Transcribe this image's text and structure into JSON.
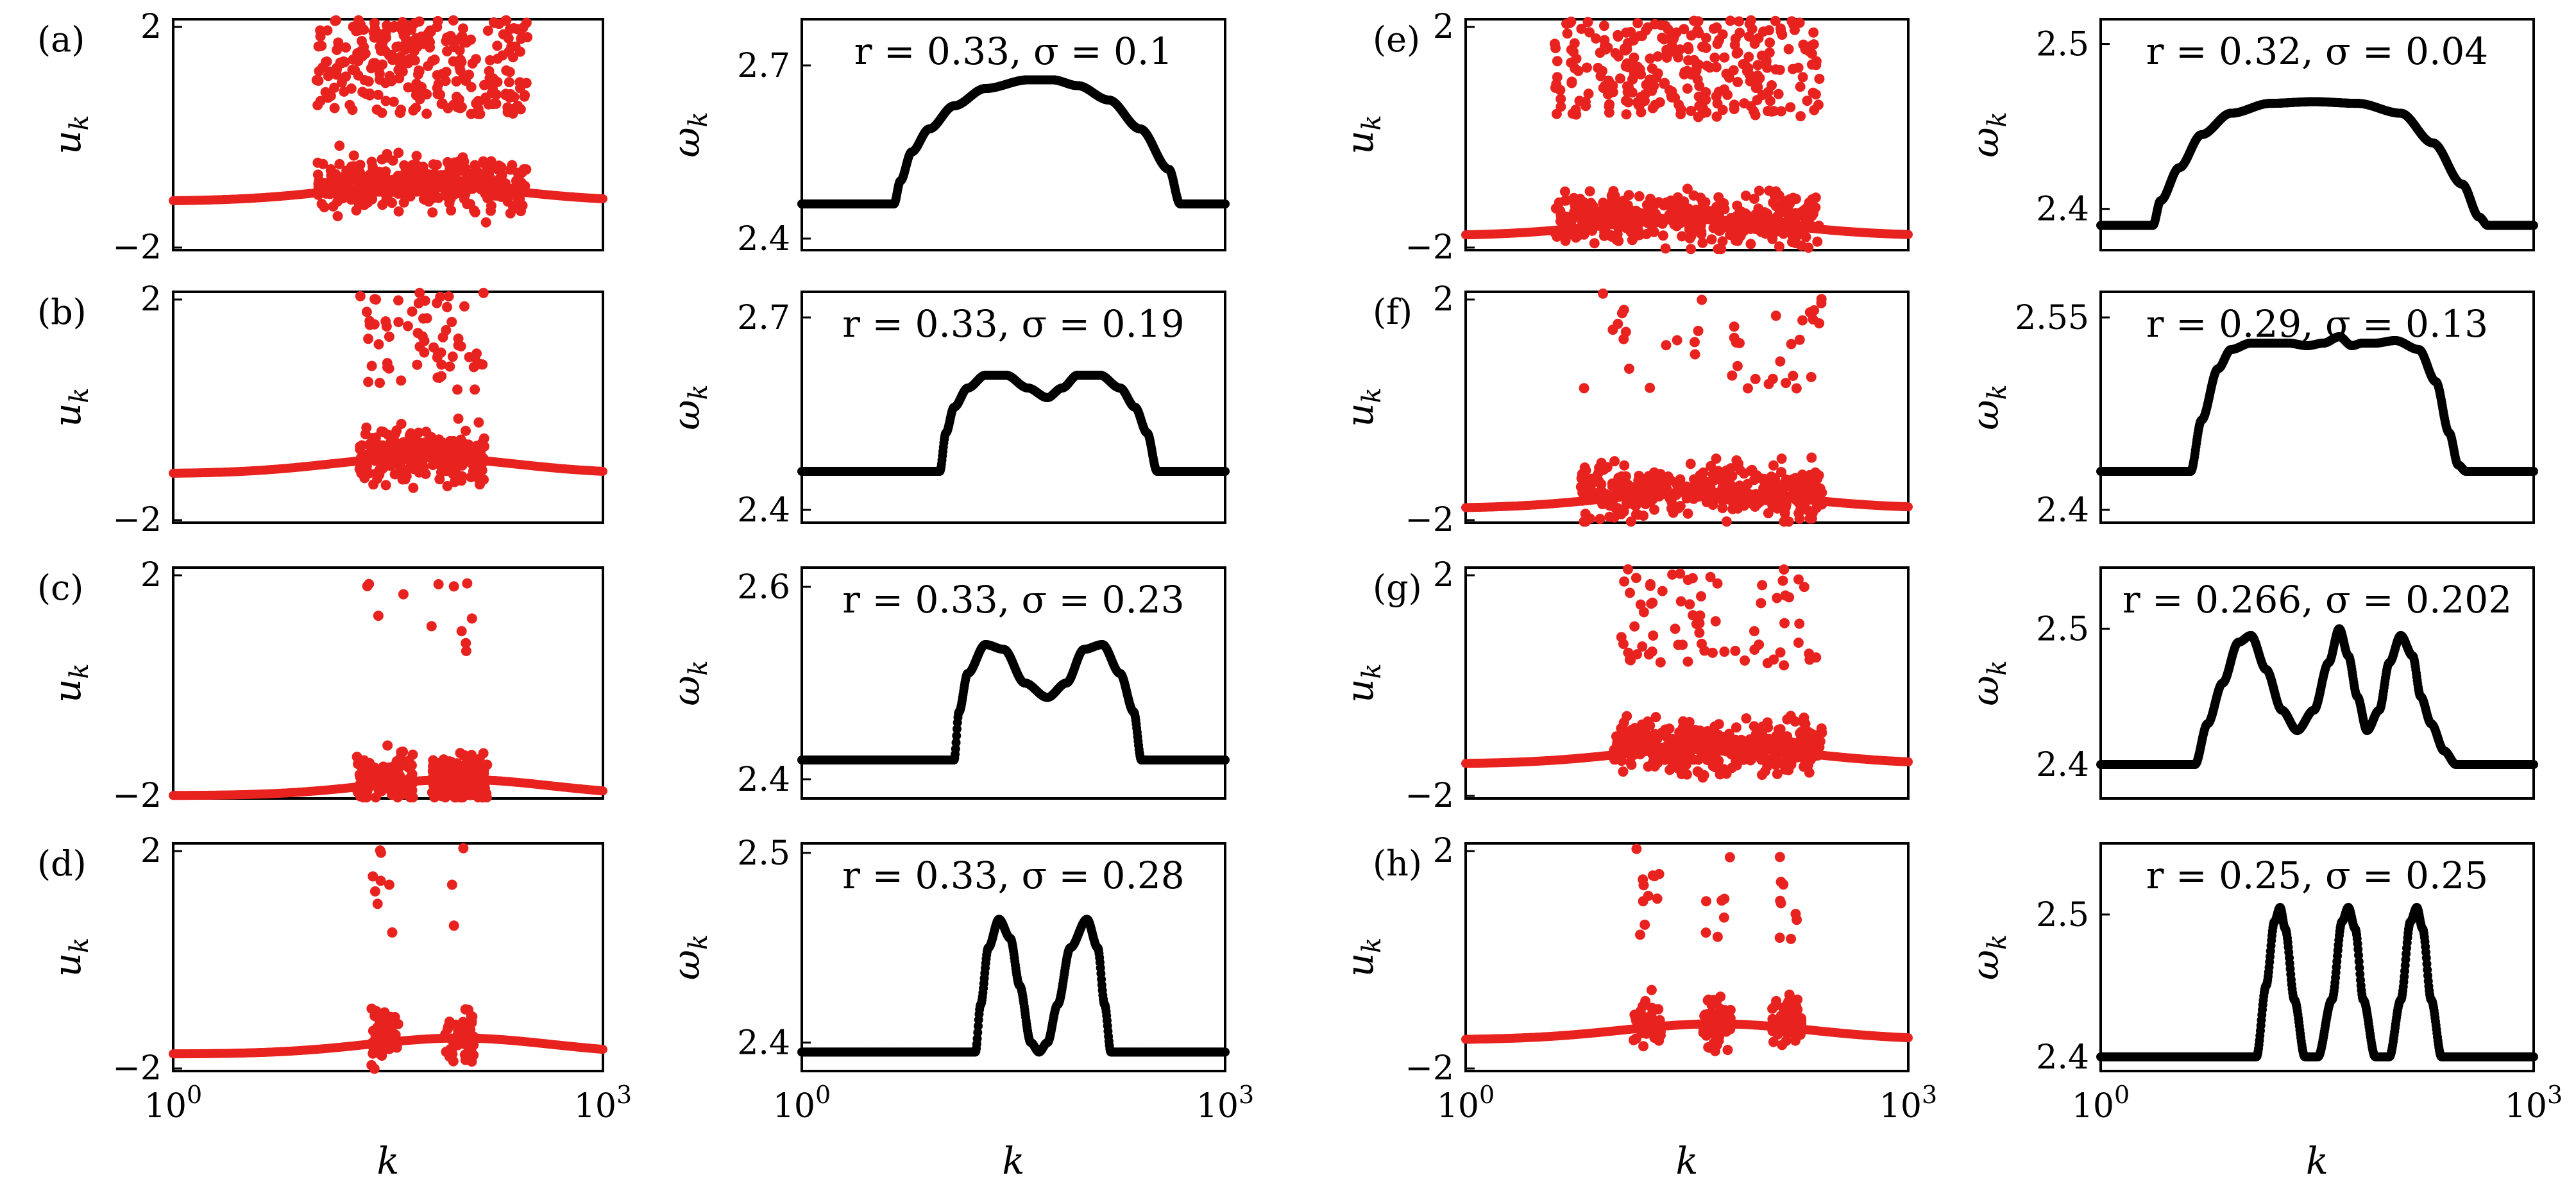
{
  "figure": {
    "panel_letters": [
      "(a)",
      "(b)",
      "(c)",
      "(d)",
      "(e)",
      "(f)",
      "(g)",
      "(h)"
    ],
    "x_axis_label": "k",
    "u_axis_label": "u_k",
    "omega_axis_label": "ω_k",
    "x_tick_labels": [
      "10^0",
      "10^3"
    ],
    "u_tick_labels": [
      "2",
      "−2"
    ]
  },
  "chart_data": [
    {
      "panel": "(a)",
      "type": "scatter",
      "color": "#e8221e",
      "xlabel": "k",
      "ylabel": "u_k",
      "xscale": "log",
      "xlim": [
        1,
        1000
      ],
      "ylim": [
        -2,
        2
      ],
      "yticks": [
        2,
        -2
      ],
      "xticks": [
        "10^0",
        "10^3"
      ],
      "description_values": {
        "baseline": -1.15,
        "scatter_range": [
          10,
          300
        ],
        "cluster_count": 1,
        "cluster_centers": [
          55
        ],
        "cluster_width_dex": 0.78
      }
    },
    {
      "panel": "(b)",
      "type": "scatter",
      "color": "#e8221e",
      "xlabel": "k",
      "ylabel": "u_k",
      "xscale": "log",
      "xlim": [
        1,
        1000
      ],
      "ylim": [
        -2,
        2
      ],
      "yticks": [
        2,
        -2
      ],
      "xticks": [
        "10^0",
        "10^3"
      ],
      "description_values": {
        "baseline": -1.15,
        "scatter_range": [
          20,
          150
        ],
        "cluster_count": 1,
        "cluster_centers": [
          55
        ],
        "cluster_width_dex": 0.45
      }
    },
    {
      "panel": "(c)",
      "type": "scatter",
      "color": "#e8221e",
      "xlabel": "k",
      "ylabel": "u_k",
      "xscale": "log",
      "xlim": [
        1,
        1000
      ],
      "ylim": [
        -2,
        2
      ],
      "yticks": [
        2,
        -2
      ],
      "xticks": [
        "10^0",
        "10^3"
      ],
      "description_values": {
        "baseline": -1.95,
        "scatter_range": [
          20,
          150
        ],
        "cluster_count": 2,
        "cluster_centers": [
          30,
          100
        ],
        "cluster_width_dex": 0.2
      }
    },
    {
      "panel": "(d)",
      "type": "scatter",
      "color": "#e8221e",
      "xlabel": "k",
      "ylabel": "u_k",
      "xscale": "log",
      "xlim": [
        1,
        1000
      ],
      "ylim": [
        -2,
        2
      ],
      "yticks": [
        2,
        -2
      ],
      "xticks": [
        "10^0",
        "10^3"
      ],
      "description_values": {
        "baseline": -1.7,
        "scatter_range": [
          25,
          140
        ],
        "cluster_count": 2,
        "cluster_centers": [
          30,
          100
        ],
        "cluster_width_dex": 0.1
      }
    },
    {
      "panel": "(e)",
      "type": "scatter",
      "color": "#e8221e",
      "xlabel": "k",
      "ylabel": "u_k",
      "xscale": "log",
      "xlim": [
        1,
        1000
      ],
      "ylim": [
        -2,
        2
      ],
      "yticks": [
        2,
        -2
      ],
      "xticks": [
        "10^0",
        "10^3"
      ],
      "description_values": {
        "baseline": -1.75,
        "scatter_range": [
          4,
          250
        ],
        "cluster_count": 1,
        "cluster_centers": [
          35
        ],
        "cluster_width_dex": 0.85
      }
    },
    {
      "panel": "(f)",
      "type": "scatter",
      "color": "#e8221e",
      "xlabel": "k",
      "ylabel": "u_k",
      "xscale": "log",
      "xlim": [
        1,
        1000
      ],
      "ylim": [
        -2,
        2
      ],
      "yticks": [
        2,
        -2
      ],
      "xticks": [
        "10^0",
        "10^3"
      ],
      "description_values": {
        "baseline": -1.75,
        "scatter_range": [
          6,
          260
        ],
        "cluster_count": 1,
        "cluster_centers": [
          40
        ],
        "cluster_width_dex": 0.8
      }
    },
    {
      "panel": "(g)",
      "type": "scatter",
      "color": "#e8221e",
      "xlabel": "k",
      "ylabel": "u_k",
      "xscale": "log",
      "xlim": [
        1,
        1000
      ],
      "ylim": [
        -2,
        2
      ],
      "yticks": [
        2,
        -2
      ],
      "xticks": [
        "10^0",
        "10^3"
      ],
      "description_values": {
        "baseline": -1.4,
        "scatter_range": [
          10,
          260
        ],
        "cluster_count": 1,
        "cluster_centers": [
          50
        ],
        "cluster_width_dex": 0.7
      }
    },
    {
      "panel": "(h)",
      "type": "scatter",
      "color": "#e8221e",
      "xlabel": "k",
      "ylabel": "u_k",
      "xscale": "log",
      "xlim": [
        1,
        1000
      ],
      "ylim": [
        -2,
        2
      ],
      "yticks": [
        2,
        -2
      ],
      "xticks": [
        "10^0",
        "10^3"
      ],
      "description_values": {
        "baseline": -1.45,
        "scatter_range": [
          15,
          200
        ],
        "cluster_count": 3,
        "cluster_centers": [
          17,
          50,
          150
        ],
        "cluster_width_dex": 0.1
      }
    },
    {
      "panel": "(a) right",
      "type": "line",
      "color": "#000000",
      "xlabel": "k",
      "ylabel": "ω_k",
      "xscale": "log",
      "xlim": [
        1,
        1000
      ],
      "ylim": [
        2.38,
        2.78
      ],
      "yticks": [
        2.7,
        2.4
      ],
      "xticks": [
        "10^0",
        "10^3"
      ],
      "annotation": "r = 0.33, σ = 0.1",
      "x": [
        1,
        4.5,
        5,
        6,
        8,
        12,
        20,
        40,
        60,
        90,
        150,
        250,
        400,
        480,
        520,
        1000
      ],
      "y": [
        2.46,
        2.46,
        2.5,
        2.55,
        2.59,
        2.63,
        2.66,
        2.675,
        2.675,
        2.665,
        2.64,
        2.59,
        2.52,
        2.46,
        2.46,
        2.46
      ]
    },
    {
      "panel": "(b) right",
      "type": "line",
      "color": "#000000",
      "xlabel": "k",
      "ylabel": "ω_k",
      "xscale": "log",
      "xlim": [
        1,
        1000
      ],
      "ylim": [
        2.38,
        2.74
      ],
      "yticks": [
        2.7,
        2.4
      ],
      "xticks": [
        "10^0",
        "10^3"
      ],
      "annotation": "r = 0.33, σ = 0.19",
      "x": [
        1,
        9.5,
        10.5,
        12,
        15,
        20,
        28,
        40,
        55,
        70,
        90,
        130,
        180,
        230,
        280,
        330,
        1000
      ],
      "y": [
        2.46,
        2.46,
        2.52,
        2.56,
        2.59,
        2.61,
        2.61,
        2.59,
        2.575,
        2.59,
        2.61,
        2.61,
        2.59,
        2.56,
        2.52,
        2.46,
        2.46
      ]
    },
    {
      "panel": "(c) right",
      "type": "line",
      "color": "#000000",
      "xlabel": "k",
      "ylabel": "ω_k",
      "xscale": "log",
      "xlim": [
        1,
        1000
      ],
      "ylim": [
        2.38,
        2.62
      ],
      "yticks": [
        2.6,
        2.4
      ],
      "xticks": [
        "10^0",
        "10^3"
      ],
      "annotation": "r = 0.33, σ = 0.23",
      "x": [
        1,
        12,
        13,
        15,
        20,
        27,
        38,
        55,
        75,
        100,
        135,
        180,
        225,
        255,
        1000
      ],
      "y": [
        2.42,
        2.42,
        2.47,
        2.51,
        2.54,
        2.535,
        2.5,
        2.485,
        2.5,
        2.535,
        2.54,
        2.51,
        2.47,
        2.42,
        2.42
      ]
    },
    {
      "panel": "(d) right",
      "type": "line",
      "color": "#000000",
      "xlabel": "k",
      "ylabel": "ω_k",
      "xscale": "log",
      "xlim": [
        1,
        1000
      ],
      "ylim": [
        2.385,
        2.505
      ],
      "yticks": [
        2.5,
        2.4
      ],
      "xticks": [
        "10^0",
        "10^3"
      ],
      "annotation": "r = 0.33, σ = 0.28",
      "x": [
        1,
        17,
        18.5,
        21,
        25,
        30,
        35,
        42,
        48,
        55,
        65,
        80,
        105,
        125,
        140,
        155,
        1000
      ],
      "y": [
        2.395,
        2.395,
        2.42,
        2.45,
        2.465,
        2.455,
        2.43,
        2.4,
        2.395,
        2.4,
        2.42,
        2.45,
        2.465,
        2.45,
        2.42,
        2.395,
        2.395
      ]
    },
    {
      "panel": "(e) right",
      "type": "line",
      "color": "#000000",
      "xlabel": "k",
      "ylabel": "ω_k",
      "xscale": "log",
      "xlim": [
        1,
        1000
      ],
      "ylim": [
        2.375,
        2.515
      ],
      "yticks": [
        2.5,
        2.4
      ],
      "xticks": [
        "10^0",
        "10^3"
      ],
      "annotation": "r = 0.32, σ = 0.04",
      "x": [
        1,
        2.3,
        2.6,
        3.5,
        5,
        8,
        15,
        30,
        60,
        120,
        200,
        320,
        420,
        480,
        1000
      ],
      "y": [
        2.39,
        2.39,
        2.405,
        2.425,
        2.445,
        2.458,
        2.464,
        2.465,
        2.464,
        2.458,
        2.44,
        2.415,
        2.395,
        2.39,
        2.39
      ]
    },
    {
      "panel": "(f) right",
      "type": "line",
      "color": "#000000",
      "xlabel": "k",
      "ylabel": "ω_k",
      "xscale": "log",
      "xlim": [
        1,
        1000
      ],
      "ylim": [
        2.39,
        2.57
      ],
      "yticks": [
        2.55,
        2.4
      ],
      "xticks": [
        "10^0",
        "10^3"
      ],
      "annotation": "r = 0.29, σ = 0.13",
      "x": [
        1,
        4.2,
        5,
        6.5,
        8,
        11,
        15,
        20,
        27,
        35,
        45,
        55,
        65,
        80,
        110,
        160,
        210,
        260,
        300,
        340,
        1000
      ],
      "y": [
        2.43,
        2.43,
        2.47,
        2.51,
        2.525,
        2.53,
        2.53,
        2.53,
        2.528,
        2.53,
        2.535,
        2.528,
        2.53,
        2.53,
        2.532,
        2.525,
        2.5,
        2.46,
        2.435,
        2.43,
        2.43
      ]
    },
    {
      "panel": "(g) right",
      "type": "line",
      "color": "#000000",
      "xlabel": "k",
      "ylabel": "ω_k",
      "xscale": "log",
      "xlim": [
        1,
        1000
      ],
      "ylim": [
        2.375,
        2.545
      ],
      "yticks": [
        2.5,
        2.4
      ],
      "xticks": [
        "10^0",
        "10^3"
      ],
      "annotation": "r = 0.266, σ = 0.202",
      "x": [
        1,
        4.5,
        5.5,
        7,
        9,
        11,
        14,
        18,
        23,
        30,
        38,
        45,
        52,
        60,
        70,
        85,
        100,
        120,
        145,
        165,
        195,
        240,
        290,
        340,
        1000
      ],
      "y": [
        2.4,
        2.4,
        2.43,
        2.46,
        2.49,
        2.495,
        2.47,
        2.44,
        2.425,
        2.44,
        2.475,
        2.5,
        2.48,
        2.45,
        2.425,
        2.44,
        2.475,
        2.495,
        2.48,
        2.45,
        2.43,
        2.41,
        2.4,
        2.4,
        2.4
      ]
    },
    {
      "panel": "(h) right",
      "type": "line",
      "color": "#000000",
      "xlabel": "k",
      "ylabel": "ω_k",
      "xscale": "log",
      "xlim": [
        1,
        1000
      ],
      "ylim": [
        2.39,
        2.55
      ],
      "yticks": [
        2.5,
        2.4
      ],
      "xticks": [
        "10^0",
        "10^3"
      ],
      "annotation": "r = 0.25, σ = 0.25",
      "x": [
        1,
        12,
        14,
        16,
        17.5,
        19,
        22,
        26,
        32,
        40,
        47,
        52,
        58,
        66,
        80,
        100,
        120,
        140,
        155,
        170,
        195,
        230,
        1000
      ],
      "y": [
        2.4,
        2.4,
        2.45,
        2.495,
        2.505,
        2.49,
        2.44,
        2.4,
        2.4,
        2.44,
        2.495,
        2.505,
        2.49,
        2.44,
        2.4,
        2.4,
        2.44,
        2.495,
        2.505,
        2.49,
        2.44,
        2.4,
        2.4
      ]
    }
  ]
}
